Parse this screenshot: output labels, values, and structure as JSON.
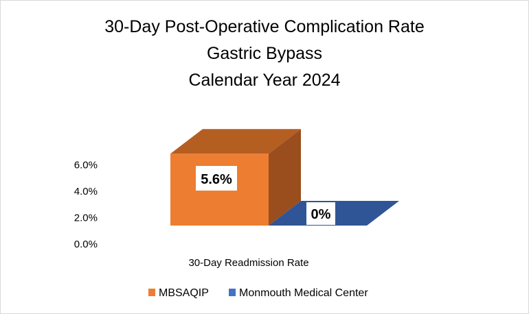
{
  "chart_data": {
    "type": "bar",
    "style": "3d-column",
    "title": [
      "30-Day Post-Operative Complication Rate",
      "Gastric Bypass",
      "Calendar Year 2024"
    ],
    "categories": [
      "30-Day Readmission Rate"
    ],
    "series": [
      {
        "name": "MBSAQIP",
        "values": [
          5.6
        ],
        "label": "5.6%",
        "color": "#ED7D31",
        "top_color": "#B55E22",
        "side_color": "#9A4E1E"
      },
      {
        "name": "Monmouth Medical Center",
        "values": [
          0
        ],
        "label": "0%",
        "color": "#4472C4",
        "top_color": "#2F5597"
      }
    ],
    "ylim": [
      0,
      6
    ],
    "yticks": [
      0,
      2,
      4,
      6
    ],
    "ytick_labels": [
      "0.0%",
      "2.0%",
      "4.0%",
      "6.0%"
    ],
    "xlabel": "30-Day Readmission Rate",
    "ylabel": "",
    "grid": false,
    "legend": "bottom"
  }
}
